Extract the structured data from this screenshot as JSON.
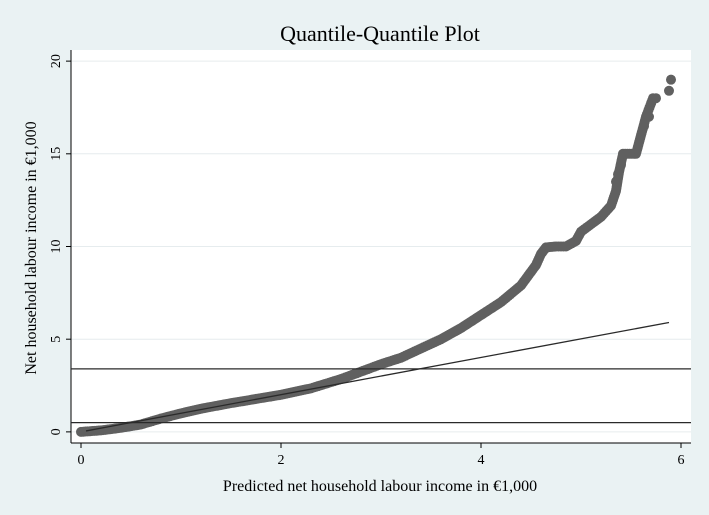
{
  "chart_data": {
    "type": "scatter",
    "title": "Quantile-Quantile Plot",
    "xlabel": "Predicted net household labour income in €1,000",
    "ylabel": "Net household labour income in €1,000",
    "xlim": [
      -0.1,
      6.1
    ],
    "ylim": [
      -0.6,
      20.6
    ],
    "x_ticks": [
      0,
      2,
      4,
      6
    ],
    "y_ticks": [
      0,
      5,
      10,
      15,
      20
    ],
    "grid": true,
    "legend": "none",
    "reference_line": {
      "from": [
        0.05,
        0.05
      ],
      "to": [
        5.88,
        5.9
      ]
    },
    "horizontal_lines": [
      3.4,
      0.5
    ],
    "marker_color": "#606060",
    "points_curve": [
      [
        0.0,
        0.0
      ],
      [
        0.2,
        0.08
      ],
      [
        0.4,
        0.22
      ],
      [
        0.6,
        0.4
      ],
      [
        0.8,
        0.72
      ],
      [
        1.0,
        1.0
      ],
      [
        1.2,
        1.25
      ],
      [
        1.5,
        1.55
      ],
      [
        1.8,
        1.82
      ],
      [
        2.0,
        2.0
      ],
      [
        2.3,
        2.35
      ],
      [
        2.6,
        2.85
      ],
      [
        2.8,
        3.25
      ],
      [
        3.0,
        3.65
      ],
      [
        3.2,
        4.0
      ],
      [
        3.4,
        4.5
      ],
      [
        3.6,
        5.0
      ],
      [
        3.8,
        5.6
      ],
      [
        4.0,
        6.3
      ],
      [
        4.2,
        7.0
      ],
      [
        4.4,
        7.9
      ],
      [
        4.55,
        9.0
      ],
      [
        4.6,
        9.6
      ],
      [
        4.65,
        9.95
      ],
      [
        4.75,
        10.0
      ],
      [
        4.85,
        10.0
      ],
      [
        4.95,
        10.3
      ],
      [
        5.0,
        10.8
      ],
      [
        5.1,
        11.2
      ],
      [
        5.2,
        11.6
      ],
      [
        5.3,
        12.2
      ],
      [
        5.35,
        13.0
      ],
      [
        5.38,
        14.0
      ],
      [
        5.42,
        15.0
      ],
      [
        5.55,
        15.0
      ],
      [
        5.6,
        16.0
      ],
      [
        5.65,
        17.0
      ],
      [
        5.72,
        18.0
      ]
    ],
    "points_extra": [
      [
        5.35,
        13.5
      ],
      [
        5.37,
        13.9
      ],
      [
        5.4,
        14.4
      ],
      [
        5.63,
        16.5
      ],
      [
        5.68,
        17.0
      ],
      [
        5.75,
        18.0
      ],
      [
        5.88,
        18.4
      ],
      [
        5.9,
        19.0
      ]
    ]
  }
}
